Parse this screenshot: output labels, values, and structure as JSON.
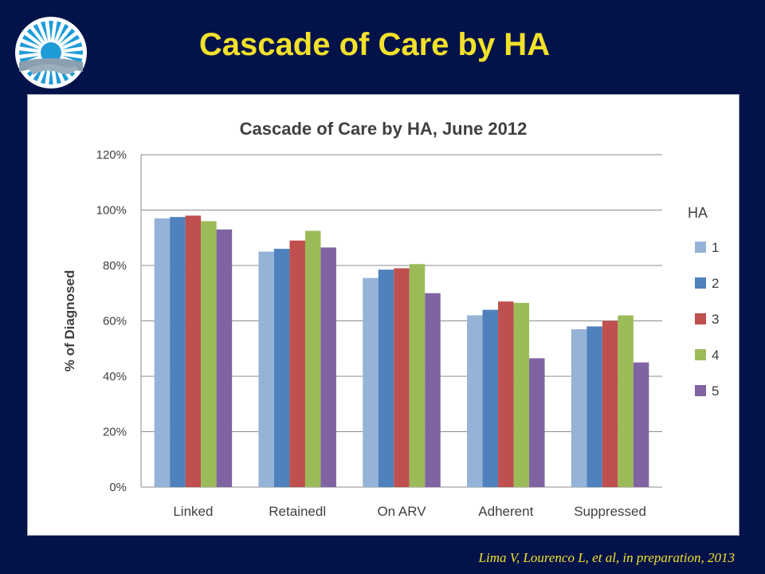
{
  "slide": {
    "title": "Cascade of Care by HA",
    "citation": "Lima V, Lourenco L, et al, in preparation, 2013"
  },
  "colors": {
    "background": "#04124a",
    "title": "#f2e12a"
  },
  "chart_data": {
    "type": "bar",
    "title": "Cascade of Care by HA, June 2012",
    "xlabel": "",
    "ylabel": "% of Diagnosed",
    "categories": [
      "Linked",
      "Retainedl",
      "On ARV",
      "Adherent",
      "Suppressed"
    ],
    "ylim": [
      0,
      120
    ],
    "yticks": [
      0,
      20,
      40,
      60,
      80,
      100,
      120
    ],
    "ytick_labels": [
      "0%",
      "20%",
      "40%",
      "60%",
      "80%",
      "100%",
      "120%"
    ],
    "grid": true,
    "legend_title": "HA",
    "legend_position": "right",
    "series": [
      {
        "name": "1",
        "color": "#95b3d7",
        "values": [
          97,
          85,
          75.5,
          62,
          57
        ]
      },
      {
        "name": "2",
        "color": "#4f81bd",
        "values": [
          97.5,
          86,
          78.5,
          64,
          58
        ]
      },
      {
        "name": "3",
        "color": "#c0504d",
        "values": [
          98,
          89,
          79,
          67,
          60
        ]
      },
      {
        "name": "4",
        "color": "#9bbb59",
        "values": [
          96,
          92.5,
          80.5,
          66.5,
          62
        ]
      },
      {
        "name": "5",
        "color": "#8064a2",
        "values": [
          93,
          86.5,
          70,
          46.5,
          45
        ]
      }
    ]
  }
}
